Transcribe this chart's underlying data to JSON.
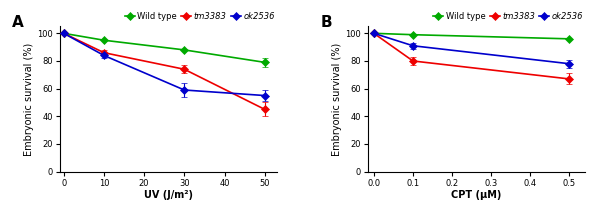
{
  "panel_A": {
    "title": "A",
    "xlabel": "UV (J/m²)",
    "ylabel": "Embryonic survival (%)",
    "xlim": [
      -1,
      53
    ],
    "ylim": [
      0,
      105
    ],
    "xticks": [
      0,
      10,
      20,
      30,
      40,
      50
    ],
    "yticks": [
      0,
      20,
      40,
      60,
      80,
      100
    ],
    "series": [
      {
        "label": "Wild type",
        "italic": false,
        "x": [
          0,
          10,
          30,
          50
        ],
        "y": [
          100,
          95,
          88,
          79
        ],
        "yerr": [
          0,
          0,
          0,
          3
        ],
        "color": "#00aa00",
        "marker": "D",
        "markersize": 4,
        "linewidth": 1.2
      },
      {
        "label": "tm3383",
        "italic": true,
        "x": [
          0,
          10,
          30,
          50
        ],
        "y": [
          100,
          86,
          74,
          45
        ],
        "yerr": [
          0,
          2,
          3,
          5
        ],
        "color": "#ee0000",
        "marker": "D",
        "markersize": 4,
        "linewidth": 1.2
      },
      {
        "label": "ok2536",
        "italic": true,
        "x": [
          0,
          10,
          30,
          50
        ],
        "y": [
          100,
          84,
          59,
          55
        ],
        "yerr": [
          0,
          2,
          5,
          4
        ],
        "color": "#0000cc",
        "marker": "D",
        "markersize": 4,
        "linewidth": 1.2
      }
    ]
  },
  "panel_B": {
    "title": "B",
    "xlabel": "CPT (μM)",
    "ylabel": "Embryonic survival (%)",
    "xlim": [
      -0.015,
      0.54
    ],
    "ylim": [
      0,
      105
    ],
    "xticks": [
      0.0,
      0.1,
      0.2,
      0.3,
      0.4,
      0.5
    ],
    "yticks": [
      0,
      20,
      40,
      60,
      80,
      100
    ],
    "series": [
      {
        "label": "Wild type",
        "italic": false,
        "x": [
          0.0,
          0.1,
          0.5
        ],
        "y": [
          100,
          99,
          96
        ],
        "yerr": [
          0,
          0,
          0
        ],
        "color": "#00aa00",
        "marker": "D",
        "markersize": 4,
        "linewidth": 1.2
      },
      {
        "label": "tm3383",
        "italic": true,
        "x": [
          0.0,
          0.1,
          0.5
        ],
        "y": [
          100,
          80,
          67
        ],
        "yerr": [
          0,
          3,
          4
        ],
        "color": "#ee0000",
        "marker": "D",
        "markersize": 4,
        "linewidth": 1.2
      },
      {
        "label": "ok2536",
        "italic": true,
        "x": [
          0.0,
          0.1,
          0.5
        ],
        "y": [
          100,
          91,
          78
        ],
        "yerr": [
          0,
          2,
          3
        ],
        "color": "#0000cc",
        "marker": "D",
        "markersize": 4,
        "linewidth": 1.2
      }
    ]
  },
  "background_color": "#ffffff",
  "tick_fontsize": 6,
  "label_fontsize": 7,
  "legend_fontsize": 6,
  "title_fontsize": 11
}
